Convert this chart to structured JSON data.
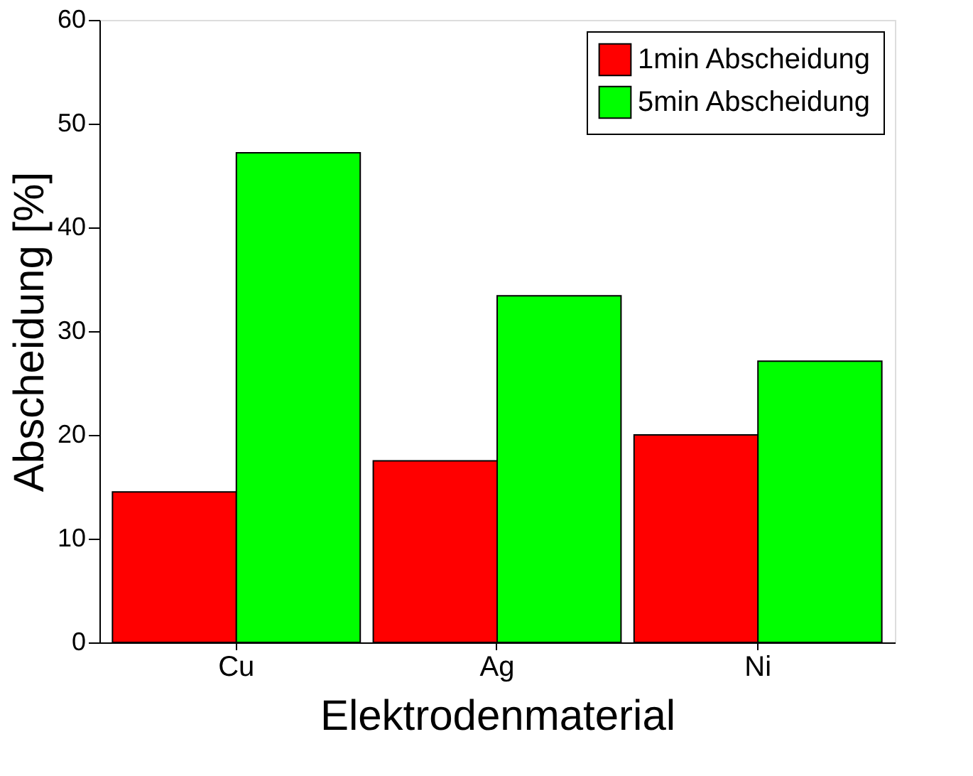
{
  "chart_data": {
    "type": "bar",
    "xlabel": "Elektrodenmaterial",
    "ylabel": "Abscheidung [%]",
    "categories": [
      "Cu",
      "Ag",
      "Ni"
    ],
    "series": [
      {
        "name": "1min Abscheidung",
        "color": "#ff0000",
        "values": [
          14.5,
          17.5,
          20.0
        ]
      },
      {
        "name": "5min Abscheidung",
        "color": "#00ff00",
        "values": [
          47.2,
          33.4,
          27.1
        ]
      }
    ],
    "ylim": [
      0,
      60
    ],
    "yticks": [
      0,
      10,
      20,
      30,
      40,
      50,
      60
    ],
    "grid": false,
    "legend": "top right"
  }
}
